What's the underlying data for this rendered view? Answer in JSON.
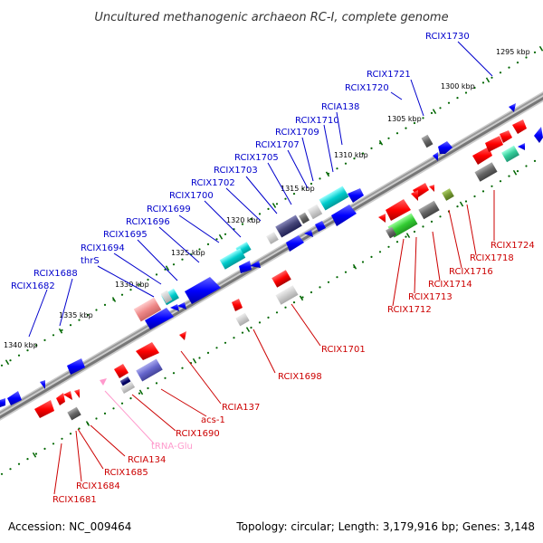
{
  "title": "Uncultured methanogenic archaeon RC-I, complete genome",
  "footer": {
    "accession": "Accession: NC_009464",
    "summary": "Topology: circular; Length: 3,179,916 bp; Genes: 3,148"
  },
  "colors": {
    "plus_strand": "#0000ff",
    "minus_strand": "#ff0000",
    "rna_label": "#ff99cc",
    "tick": "#006600",
    "backbone": "#888888"
  },
  "scale_ticks": [
    "1295 kbp",
    "1300 kbp",
    "1305 kbp",
    "1310 kbp",
    "1315 kbp",
    "1320 kbp",
    "1325 kbp",
    "1330 kbp",
    "1335 kbp",
    "1340 kbp"
  ],
  "upper_genes": [
    "RCIX1730",
    "RCIX1721",
    "RCIX1720",
    "RCIA138",
    "RCIX1710",
    "RCIX1709",
    "RCIX1707",
    "RCIX1705",
    "RCIX1703",
    "RCIX1702",
    "RCIX1700",
    "RCIX1699",
    "RCIX1696",
    "RCIX1695",
    "RCIX1694",
    "thrS",
    "RCIX1688",
    "RCIX1682"
  ],
  "lower_genes": [
    "RCIX1724",
    "RCIX1718",
    "RCIX1716",
    "RCIX1714",
    "RCIX1713",
    "RCIX1712",
    "RCIX1701",
    "RCIX1698",
    "RCIA137",
    "acs-1",
    "RCIX1690",
    "tRNA-Glu",
    "RCIA134",
    "RCIX1685",
    "RCIX1684",
    "RCIX1681"
  ]
}
